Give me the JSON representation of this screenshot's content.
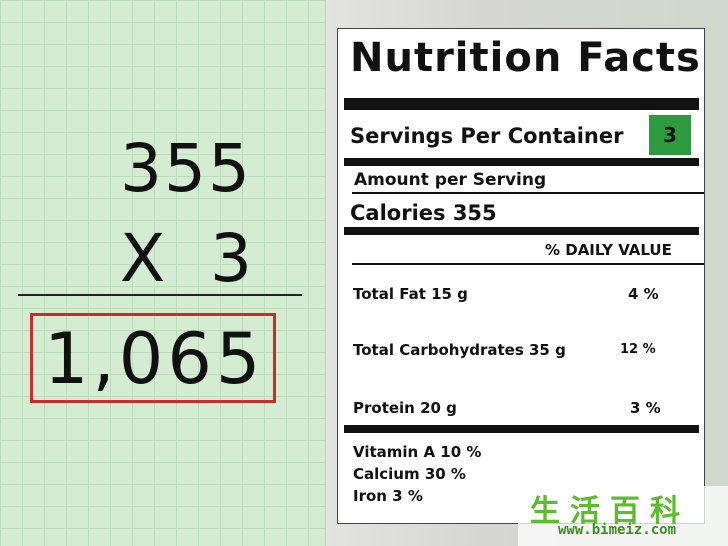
{
  "math": {
    "multiplicand": "355",
    "operator": "X",
    "multiplier": "3",
    "result": "1,065"
  },
  "label": {
    "title": "Nutrition Facts",
    "servings_label": "Servings Per Container",
    "servings_value": "3",
    "amount_label": "Amount per Serving",
    "calories_text": "Calories  355",
    "daily_value_header": "% DAILY VALUE",
    "nutrients": [
      {
        "name": "Total Fat 15 g",
        "value": "4 %"
      },
      {
        "name": "Total Carbohydrates 35 g",
        "value": "12 %"
      },
      {
        "name": "Protein 20 g",
        "value": "3 %"
      }
    ],
    "vitamins": [
      {
        "text": "Vitamin A  10 %"
      },
      {
        "text": "Calcium  30 %"
      },
      {
        "text": "Iron   3 %"
      }
    ]
  },
  "watermark": {
    "glyphs": "生活百科",
    "url": "www.bimeiz.com"
  },
  "colors": {
    "grid_background": "#d4ecd2",
    "result_box_border": "#cc2b2b",
    "servings_badge": "#2d9a3e",
    "watermark_text": "#5dbb2e"
  }
}
